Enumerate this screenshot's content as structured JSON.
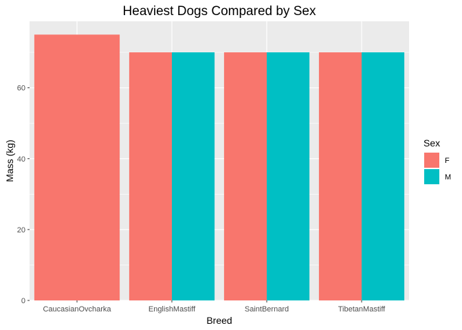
{
  "chart_data": {
    "type": "bar",
    "title": "Heaviest Dogs Compared by Sex",
    "xlabel": "Breed",
    "ylabel": "Mass (kg)",
    "categories": [
      "CaucasianOvcharka",
      "EnglishMastiff",
      "SaintBernard",
      "TibetanMastiff"
    ],
    "ylim": [
      0,
      78.75
    ],
    "yticks": [
      0,
      20,
      40,
      60
    ],
    "grid": true,
    "legend": {
      "title": "Sex",
      "position": "right"
    },
    "series": [
      {
        "name": "F",
        "color": "#F8766D",
        "values": [
          75,
          70,
          70,
          70
        ]
      },
      {
        "name": "M",
        "color": "#00BFC4",
        "values": [
          null,
          70,
          70,
          70
        ]
      }
    ],
    "panel_background": "#EBEBEB",
    "grid_color": "#FFFFFF"
  }
}
